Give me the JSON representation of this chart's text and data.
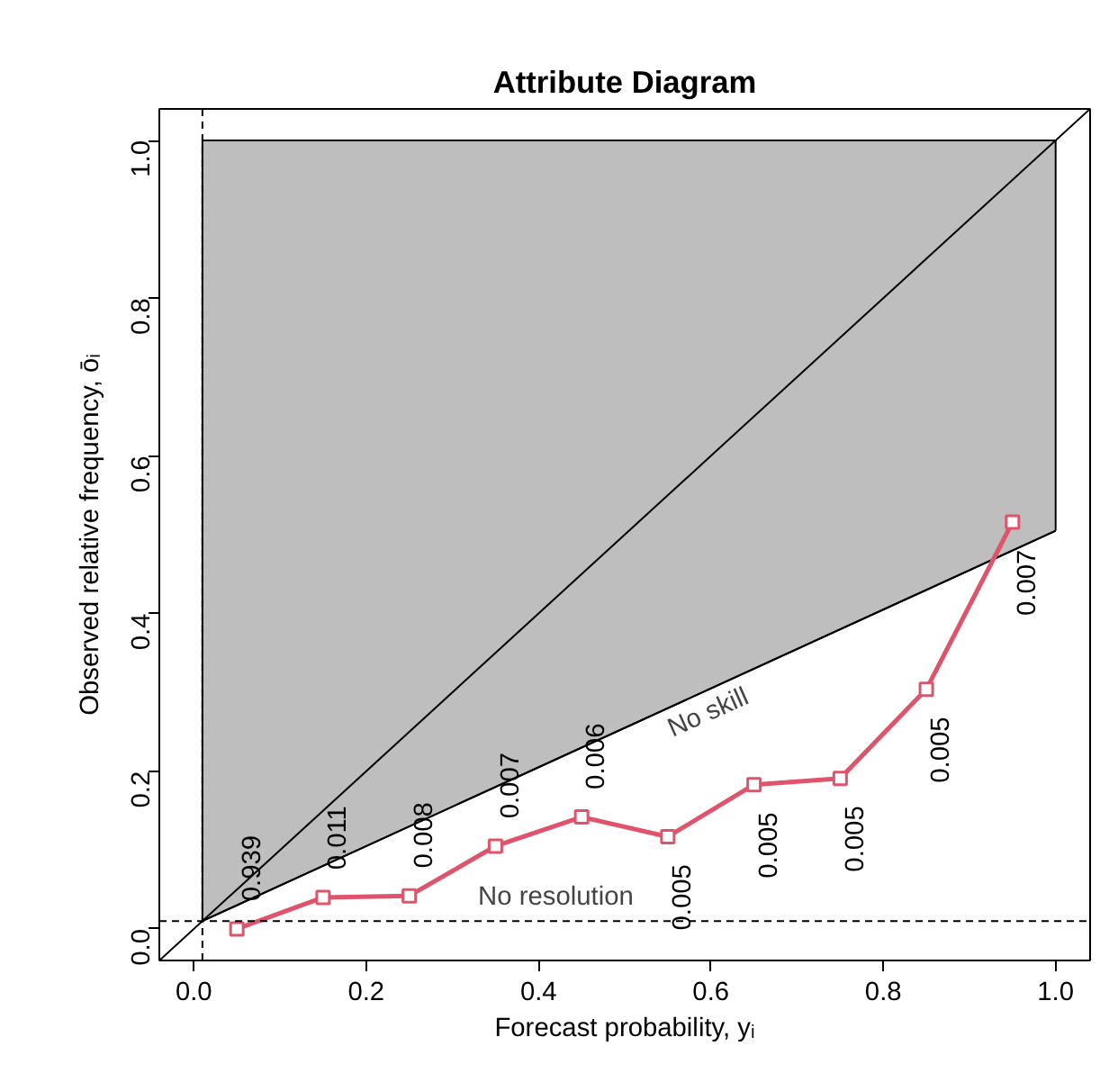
{
  "chart_data": {
    "type": "line",
    "title": "Attribute Diagram",
    "xlabel": "Forecast probability, yᵢ",
    "ylabel": "Observed relative frequency, ōᵢ",
    "xlim": [
      -0.04,
      1.04
    ],
    "ylim": [
      -0.04,
      1.04
    ],
    "xticks": [
      {
        "value": 0,
        "label": "0.0"
      },
      {
        "value": 0.2,
        "label": "0.2"
      },
      {
        "value": 0.4,
        "label": "0.4"
      },
      {
        "value": 0.6,
        "label": "0.6"
      },
      {
        "value": 0.8,
        "label": "0.8"
      },
      {
        "value": 1,
        "label": "1.0"
      }
    ],
    "yticks": [
      {
        "value": 0,
        "label": "0.0"
      },
      {
        "value": 0.2,
        "label": "0.2"
      },
      {
        "value": 0.4,
        "label": "0.4"
      },
      {
        "value": 0.6,
        "label": "0.6"
      },
      {
        "value": 0.8,
        "label": "0.8"
      },
      {
        "value": 1,
        "label": "1.0"
      }
    ],
    "series": [
      {
        "color": "#000000",
        "x": [
          0.01,
          1.0
        ],
        "values": [
          0.01,
          0.505
        ]
      },
      {
        "type": "area",
        "color": "#bebebe",
        "x": [
          0.01,
          1.0
        ],
        "values": [
          1.0,
          1.0
        ]
      },
      {
        "color": "#000000",
        "x": [
          -0.04,
          1.04
        ],
        "values": [
          -0.04,
          1.04
        ]
      },
      {
        "color": "#df536b",
        "marker": "square",
        "line_style": "solid",
        "x": [
          0.05,
          0.15,
          0.25,
          0.35,
          0.45,
          0.55,
          0.65,
          0.75,
          0.85,
          0.95
        ],
        "values": [
          0.0,
          0.04,
          0.042,
          0.105,
          0.142,
          0.117,
          0.183,
          0.191,
          0.304,
          0.516
        ]
      }
    ],
    "ref_lines": [
      {
        "axis": "y",
        "value": 0.01,
        "label": "No resolution",
        "line_style": "dashed"
      },
      {
        "axis": "x",
        "value": 0.01,
        "line_style": "dashed"
      }
    ],
    "annotations": [
      "No skill",
      {
        "text": "0.939",
        "x": 0.05,
        "y": 0.0
      },
      {
        "text": "0.011",
        "x": 0.15,
        "y": 0.04
      },
      {
        "text": "0.008",
        "x": 0.25,
        "y": 0.042
      },
      {
        "text": "0.007",
        "x": 0.35,
        "y": 0.105
      },
      {
        "text": "0.006",
        "x": 0.45,
        "y": 0.142
      },
      {
        "text": "0.005",
        "x": 0.55,
        "y": 0.117
      },
      {
        "text": "0.005",
        "x": 0.65,
        "y": 0.183
      },
      {
        "text": "0.005",
        "x": 0.75,
        "y": 0.191
      },
      {
        "text": "0.005",
        "x": 0.85,
        "y": 0.304
      },
      {
        "text": "0.007",
        "x": 0.95,
        "y": 0.516
      }
    ]
  }
}
